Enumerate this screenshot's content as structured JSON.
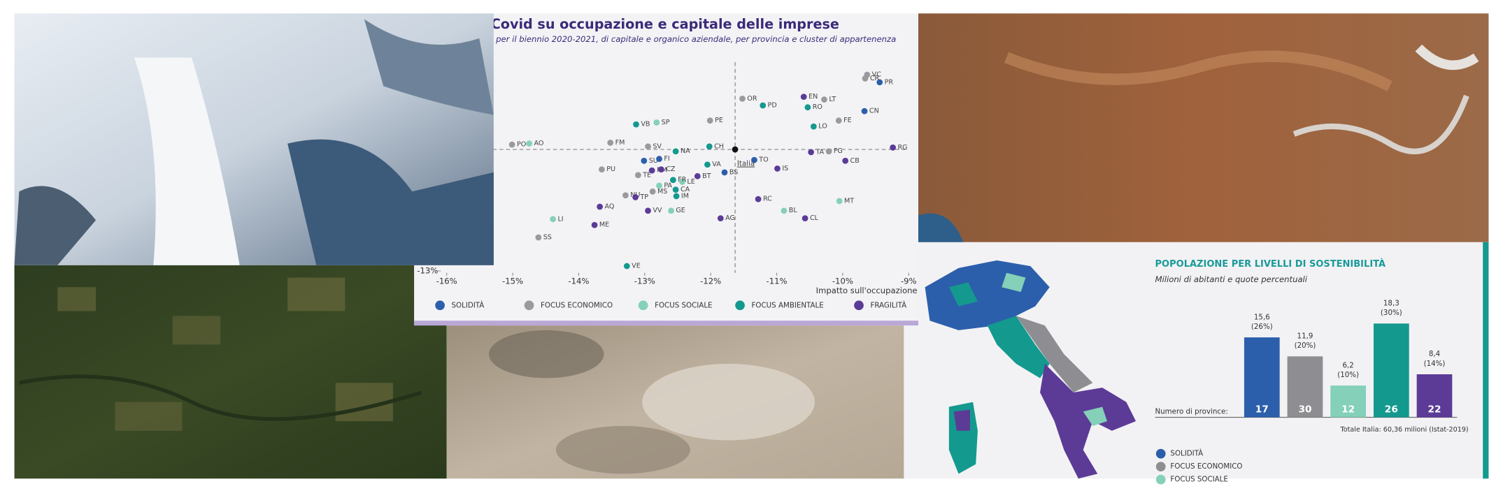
{
  "chart_data": [
    {
      "type": "scatter",
      "title": "Covid su occupazione e capitale delle imprese",
      "subtitle": ", per il biennio 2020-2021, di capitale e organico aziendale, per provincia e cluster di appartenenza",
      "x_label": "Impatto sull'occupazione",
      "xlim": [
        -16,
        -9
      ],
      "xticks": [
        {
          "value": -16,
          "label": "-16%"
        },
        {
          "value": -15,
          "label": "-15%"
        },
        {
          "value": -14,
          "label": "-14%"
        },
        {
          "value": -13,
          "label": "-13%"
        },
        {
          "value": -12,
          "label": "-12%"
        },
        {
          "value": -11,
          "label": "-11%"
        },
        {
          "value": -10,
          "label": "-10%"
        },
        {
          "value": -9,
          "label": "-9%"
        }
      ],
      "ylim": [
        -13,
        -3
      ],
      "yticks": [
        {
          "value": -13,
          "label": "-13%"
        }
      ],
      "reference": {
        "label": "Italia",
        "x": -11.63,
        "y": -7.14
      },
      "series": [
        {
          "name": "SOLIDITÀ",
          "color": "#2c5fab",
          "labels": [
            "PR",
            "CN",
            "SU",
            "FI",
            "BS",
            "TO"
          ],
          "x": [
            -9.44,
            -9.67,
            -13.01,
            -12.78,
            -11.79,
            -11.34
          ],
          "y": [
            -3.95,
            -5.32,
            -7.68,
            -7.59,
            -8.23,
            -7.64
          ]
        },
        {
          "name": "FOCUS ECONOMICO",
          "color": "#9a9a9e",
          "labels": [
            "VC",
            "CR",
            "LT",
            "OR",
            "FE",
            "PO",
            "FM",
            "FG",
            "PU",
            "TE",
            "MS",
            "NU",
            "SS",
            "PE",
            "SV"
          ],
          "x": [
            -9.63,
            -9.66,
            -10.28,
            -11.52,
            -10.06,
            -15.01,
            -13.52,
            -10.21,
            -13.65,
            -13.1,
            -12.88,
            -13.29,
            -14.61,
            -12.01,
            -12.95
          ],
          "y": [
            -3.59,
            -3.77,
            -4.77,
            -4.73,
            -5.77,
            -6.91,
            -6.82,
            -7.23,
            -8.09,
            -8.36,
            -9.14,
            -9.32,
            -11.32,
            -5.77,
            -7.0
          ]
        },
        {
          "name": "FOCUS SOCIALE",
          "color": "#84d0b8",
          "labels": [
            "SP",
            "AO",
            "LE",
            "PA",
            "BL",
            "MT",
            "GE",
            "LI"
          ],
          "x": [
            -12.82,
            -14.75,
            -12.43,
            -12.78,
            -10.89,
            -10.05,
            -12.6,
            -14.39
          ],
          "y": [
            -5.86,
            -6.86,
            -8.68,
            -8.86,
            -10.05,
            -9.59,
            -10.05,
            -10.45
          ]
        },
        {
          "name": "FOCUS AMBIENTALE",
          "color": "#14998f",
          "labels": [
            "RO",
            "LO",
            "VB",
            "NA",
            "CH",
            "VA",
            "FR",
            "CA",
            "IM",
            "VE",
            "PD"
          ],
          "x": [
            -10.53,
            -10.44,
            -13.13,
            -12.53,
            -12.02,
            -12.05,
            -12.57,
            -12.53,
            -12.52,
            -13.27,
            -11.21
          ],
          "y": [
            -5.14,
            -6.05,
            -5.95,
            -7.23,
            -7.0,
            -7.86,
            -8.59,
            -9.05,
            -9.36,
            -12.68,
            -5.05
          ]
        },
        {
          "name": "FRAGILITÀ",
          "color": "#5c3b97",
          "labels": [
            "EN",
            "RG",
            "TA",
            "CB",
            "RM",
            "CZ",
            "BT",
            "TP",
            "IS",
            "RC",
            "CL",
            "AQ",
            "VV",
            "AG",
            "ME"
          ],
          "x": [
            -10.59,
            -9.24,
            -10.48,
            -9.96,
            -12.89,
            -12.75,
            -12.2,
            -13.14,
            -10.99,
            -11.28,
            -10.57,
            -13.68,
            -12.95,
            -11.85,
            -13.76
          ],
          "y": [
            -4.64,
            -7.05,
            -7.27,
            -7.68,
            -8.14,
            -8.09,
            -8.41,
            -9.41,
            -8.05,
            -9.5,
            -10.41,
            -9.86,
            -10.05,
            -10.41,
            -10.73
          ]
        }
      ]
    },
    {
      "type": "bar",
      "title": "POPOLAZIONE PER LIVELLI DI SOSTENIBILITÀ",
      "subtitle": "Milioni di abitanti e quote percentuali",
      "values": [
        15.6,
        11.9,
        6.2,
        18.3,
        8.4
      ],
      "value_labels": [
        "15,6",
        "11,9",
        "6,2",
        "18,3",
        "8,4"
      ],
      "shares": [
        26,
        20,
        10,
        30,
        14
      ],
      "share_labels": [
        "(26%)",
        "(20%)",
        "(10%)",
        "(30%)",
        "(14%)"
      ],
      "counts_label": "Numero di province:",
      "counts": [
        17,
        30,
        12,
        26,
        22
      ],
      "colors": [
        "#2c5fab",
        "#8e8e92",
        "#84d0b8",
        "#14998f",
        "#5c3b97"
      ],
      "note": "Totale Italia: 60,36 milioni (Istat-2019)",
      "legend": [
        {
          "name": "SOLIDITÀ",
          "color": "#2c5fab"
        },
        {
          "name": "FOCUS ECONOMICO",
          "color": "#8e8e92"
        },
        {
          "name": "FOCUS SOCIALE",
          "color": "#84d0b8"
        }
      ]
    }
  ]
}
